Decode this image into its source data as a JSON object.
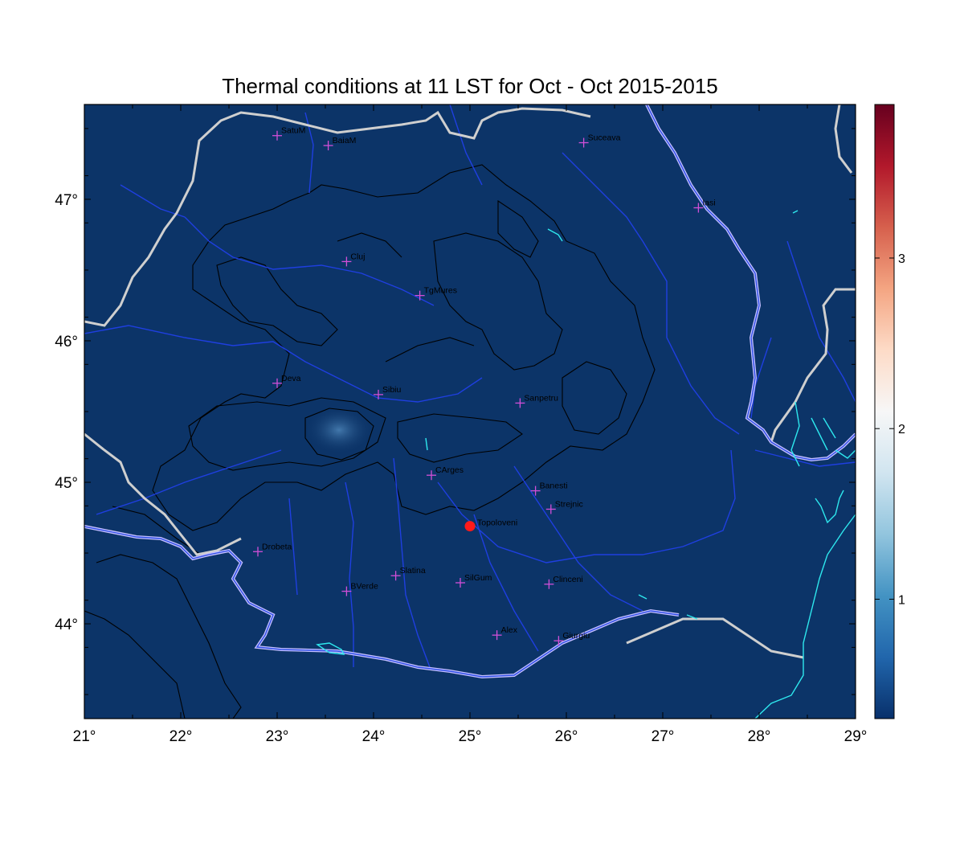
{
  "title": "Thermal conditions at 11 LST for Oct - Oct  2015-2015",
  "map": {
    "lon_range": [
      21,
      29
    ],
    "lat_range": [
      43.33,
      47.67
    ],
    "x_ticks": [
      {
        "value": 21,
        "label": "21°"
      },
      {
        "value": 22,
        "label": "22°"
      },
      {
        "value": 23,
        "label": "23°"
      },
      {
        "value": 24,
        "label": "24°"
      },
      {
        "value": 25,
        "label": "25°"
      },
      {
        "value": 26,
        "label": "26°"
      },
      {
        "value": 27,
        "label": "27°"
      },
      {
        "value": 28,
        "label": "28°"
      },
      {
        "value": 29,
        "label": "29°"
      }
    ],
    "y_ticks": [
      {
        "value": 44,
        "label": "44°"
      },
      {
        "value": 45,
        "label": "45°"
      },
      {
        "value": 46,
        "label": "46°"
      },
      {
        "value": 47,
        "label": "47°"
      }
    ],
    "colors": {
      "background": "#0c3468",
      "rivers": "#1f3fe0",
      "borders": "#cccccc",
      "coast": "#2ee8ee",
      "contours": "#000000",
      "station_marker": "#d24fd8",
      "highlight": "#ff1a1a"
    },
    "stations": [
      {
        "name": "SatuM",
        "lon": 23.0,
        "lat": 47.45
      },
      {
        "name": "BaiaM",
        "lon": 23.53,
        "lat": 47.38
      },
      {
        "name": "Suceava",
        "lon": 26.18,
        "lat": 47.4
      },
      {
        "name": "Iasi",
        "lon": 27.37,
        "lat": 46.94
      },
      {
        "name": "Cluj",
        "lon": 23.72,
        "lat": 46.56
      },
      {
        "name": "TgMures",
        "lon": 24.48,
        "lat": 46.32
      },
      {
        "name": "Deva",
        "lon": 23.0,
        "lat": 45.7
      },
      {
        "name": "Sibiu",
        "lon": 24.05,
        "lat": 45.62
      },
      {
        "name": "Sanpetru",
        "lon": 25.52,
        "lat": 45.56
      },
      {
        "name": "CArges",
        "lon": 24.6,
        "lat": 45.05
      },
      {
        "name": "Banesti",
        "lon": 25.68,
        "lat": 44.94
      },
      {
        "name": "Strejnic",
        "lon": 25.84,
        "lat": 44.81
      },
      {
        "name": "Drobeta",
        "lon": 22.8,
        "lat": 44.51
      },
      {
        "name": "Slatina",
        "lon": 24.23,
        "lat": 44.34
      },
      {
        "name": "SilGum",
        "lon": 24.9,
        "lat": 44.29
      },
      {
        "name": "Clinceni",
        "lon": 25.82,
        "lat": 44.28
      },
      {
        "name": "BVerde",
        "lon": 23.72,
        "lat": 44.23
      },
      {
        "name": "Alex",
        "lon": 25.28,
        "lat": 43.92
      },
      {
        "name": "Giurgiu",
        "lon": 25.92,
        "lat": 43.88
      }
    ],
    "highlight_station": {
      "name": "Topoloveni",
      "lon": 25.0,
      "lat": 44.69
    }
  },
  "colorbar": {
    "min": 0.3,
    "max": 3.9,
    "ticks": [
      {
        "value": 1,
        "label": "1"
      },
      {
        "value": 2,
        "label": "2"
      },
      {
        "value": 3,
        "label": "3"
      }
    ],
    "colors": [
      "#08306b",
      "#2166ac",
      "#4393c3",
      "#92c5de",
      "#d1e5f0",
      "#f7f7f7",
      "#fddbc7",
      "#f4a582",
      "#d6604d",
      "#b2182b",
      "#67001f"
    ]
  }
}
